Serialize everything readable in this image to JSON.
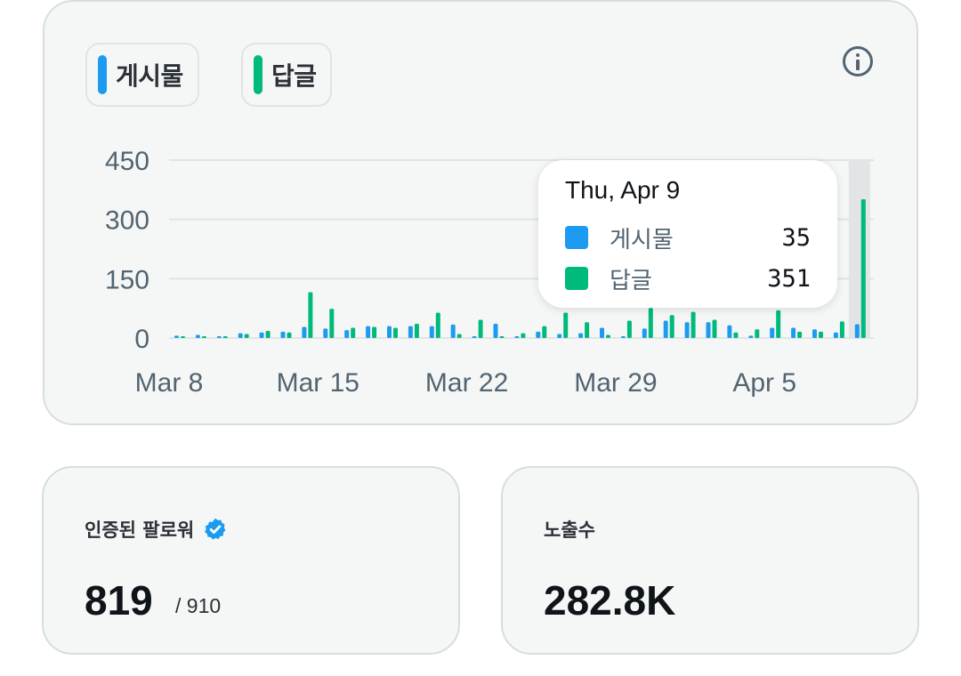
{
  "legend": {
    "posts": {
      "label": "게시물",
      "color": "#1d9bf0"
    },
    "replies": {
      "label": "답글",
      "color": "#00ba7c"
    }
  },
  "info_icon": "info-icon",
  "chart_data": {
    "type": "bar",
    "title": "",
    "x_ticks": [
      "Mar 8",
      "Mar 15",
      "Mar 22",
      "Mar 29",
      "Apr 5"
    ],
    "y_ticks": [
      "450",
      "300",
      "150",
      "0"
    ],
    "ylim": [
      0,
      450
    ],
    "dates": [
      "Mar 8",
      "Mar 9",
      "Mar 10",
      "Mar 11",
      "Mar 12",
      "Mar 13",
      "Mar 14",
      "Mar 15",
      "Mar 16",
      "Mar 17",
      "Mar 18",
      "Mar 19",
      "Mar 20",
      "Mar 21",
      "Mar 22",
      "Mar 23",
      "Mar 24",
      "Mar 25",
      "Mar 26",
      "Mar 27",
      "Mar 28",
      "Mar 29",
      "Mar 30",
      "Mar 31",
      "Apr 1",
      "Apr 2",
      "Apr 3",
      "Apr 4",
      "Apr 5",
      "Apr 6",
      "Apr 7",
      "Apr 8",
      "Apr 9"
    ],
    "series": [
      {
        "name": "게시물",
        "color": "#1d9bf0",
        "values": [
          6,
          8,
          4,
          12,
          14,
          16,
          28,
          24,
          20,
          30,
          30,
          30,
          30,
          34,
          4,
          36,
          2,
          16,
          10,
          12,
          26,
          2,
          24,
          44,
          40,
          40,
          32,
          6,
          26,
          26,
          22,
          14,
          35
        ]
      },
      {
        "name": "답글",
        "color": "#00ba7c",
        "values": [
          3,
          4,
          4,
          10,
          18,
          14,
          116,
          74,
          26,
          28,
          26,
          36,
          64,
          10,
          46,
          2,
          12,
          30,
          64,
          40,
          8,
          44,
          76,
          58,
          66,
          46,
          14,
          22,
          70,
          16,
          16,
          42,
          351
        ]
      }
    ],
    "highlighted_index": 32,
    "grid": true
  },
  "tooltip": {
    "date": "Thu, Apr 9",
    "rows": [
      {
        "label": "게시물",
        "value": "35",
        "color": "#1d9bf0"
      },
      {
        "label": "답글",
        "value": "351",
        "color": "#00ba7c"
      }
    ]
  },
  "stats": {
    "followers": {
      "label": "인증된 팔로워",
      "value": "819",
      "sub": "/ 910"
    },
    "impressions": {
      "label": "노출수",
      "value": "282.8K"
    }
  }
}
